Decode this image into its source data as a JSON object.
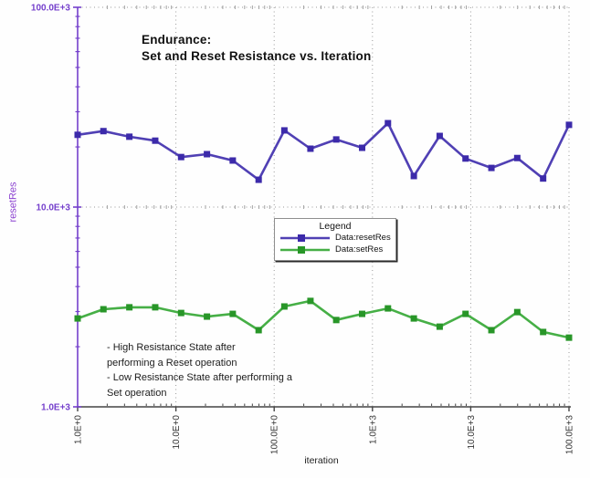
{
  "chart_data": {
    "type": "line",
    "title": "Endurance: Set and Reset Resistance vs. Iteration",
    "title_lines": [
      "Endurance:",
      "Set and Reset Resistance vs. Iteration"
    ],
    "xlabel": "iteration",
    "ylabel": "resetRes",
    "x_scale": "log",
    "y_scale": "log",
    "xlim": [
      1,
      100000
    ],
    "ylim": [
      1000,
      100000
    ],
    "grid": "dotted",
    "x_ticks": [
      {
        "value": 1,
        "label": "1.0E+0"
      },
      {
        "value": 10,
        "label": "10.0E+0"
      },
      {
        "value": 100,
        "label": "100.0E+0"
      },
      {
        "value": 1000,
        "label": "1.0E+3"
      },
      {
        "value": 10000,
        "label": "10.0E+3"
      },
      {
        "value": 100000,
        "label": "100.0E+3"
      }
    ],
    "y_ticks": [
      {
        "value": 1000,
        "label": "1.0E+3"
      },
      {
        "value": 10000,
        "label": "10.0E+3"
      },
      {
        "value": 100000,
        "label": "100.0E+3"
      }
    ],
    "x": [
      1,
      1.83,
      3.36,
      6.16,
      11.3,
      20.7,
      37.9,
      69.5,
      127,
      234,
      428,
      785,
      1438,
      2637,
      4833,
      8859,
      16238,
      29764,
      54556,
      100000
    ],
    "series": [
      {
        "name": "Data:resetRes",
        "line_color": "#5040b4",
        "marker_color": "#3c2aaa",
        "marker": "square",
        "values": [
          23000,
          24000,
          22500,
          21500,
          17800,
          18400,
          17100,
          13700,
          24200,
          19600,
          21800,
          19800,
          26300,
          14300,
          22700,
          17500,
          15700,
          17600,
          13900,
          25800
        ]
      },
      {
        "name": "Data:setRes",
        "line_color": "#46af46",
        "marker_color": "#289628",
        "marker": "square",
        "values": [
          2770,
          3080,
          3150,
          3150,
          2950,
          2830,
          2920,
          2420,
          3180,
          3390,
          2720,
          2920,
          3110,
          2770,
          2520,
          2920,
          2420,
          2980,
          2370,
          2220
        ]
      }
    ],
    "legend": {
      "title": "Legend",
      "position": "center",
      "entries": [
        {
          "label": "Data:resetRes"
        },
        {
          "label": "Data:setRes"
        }
      ]
    },
    "annotations": [
      {
        "text": "- High Resistance State after\nperforming a Reset operation\n- Low Resistance State after performing a\nSet operation"
      }
    ],
    "colors": {
      "axis_purple": "#7540cc",
      "x_axis": "#444444",
      "x_tick_text": "#333333",
      "grid": "#9a9a9a",
      "title_text": "#111111"
    }
  }
}
